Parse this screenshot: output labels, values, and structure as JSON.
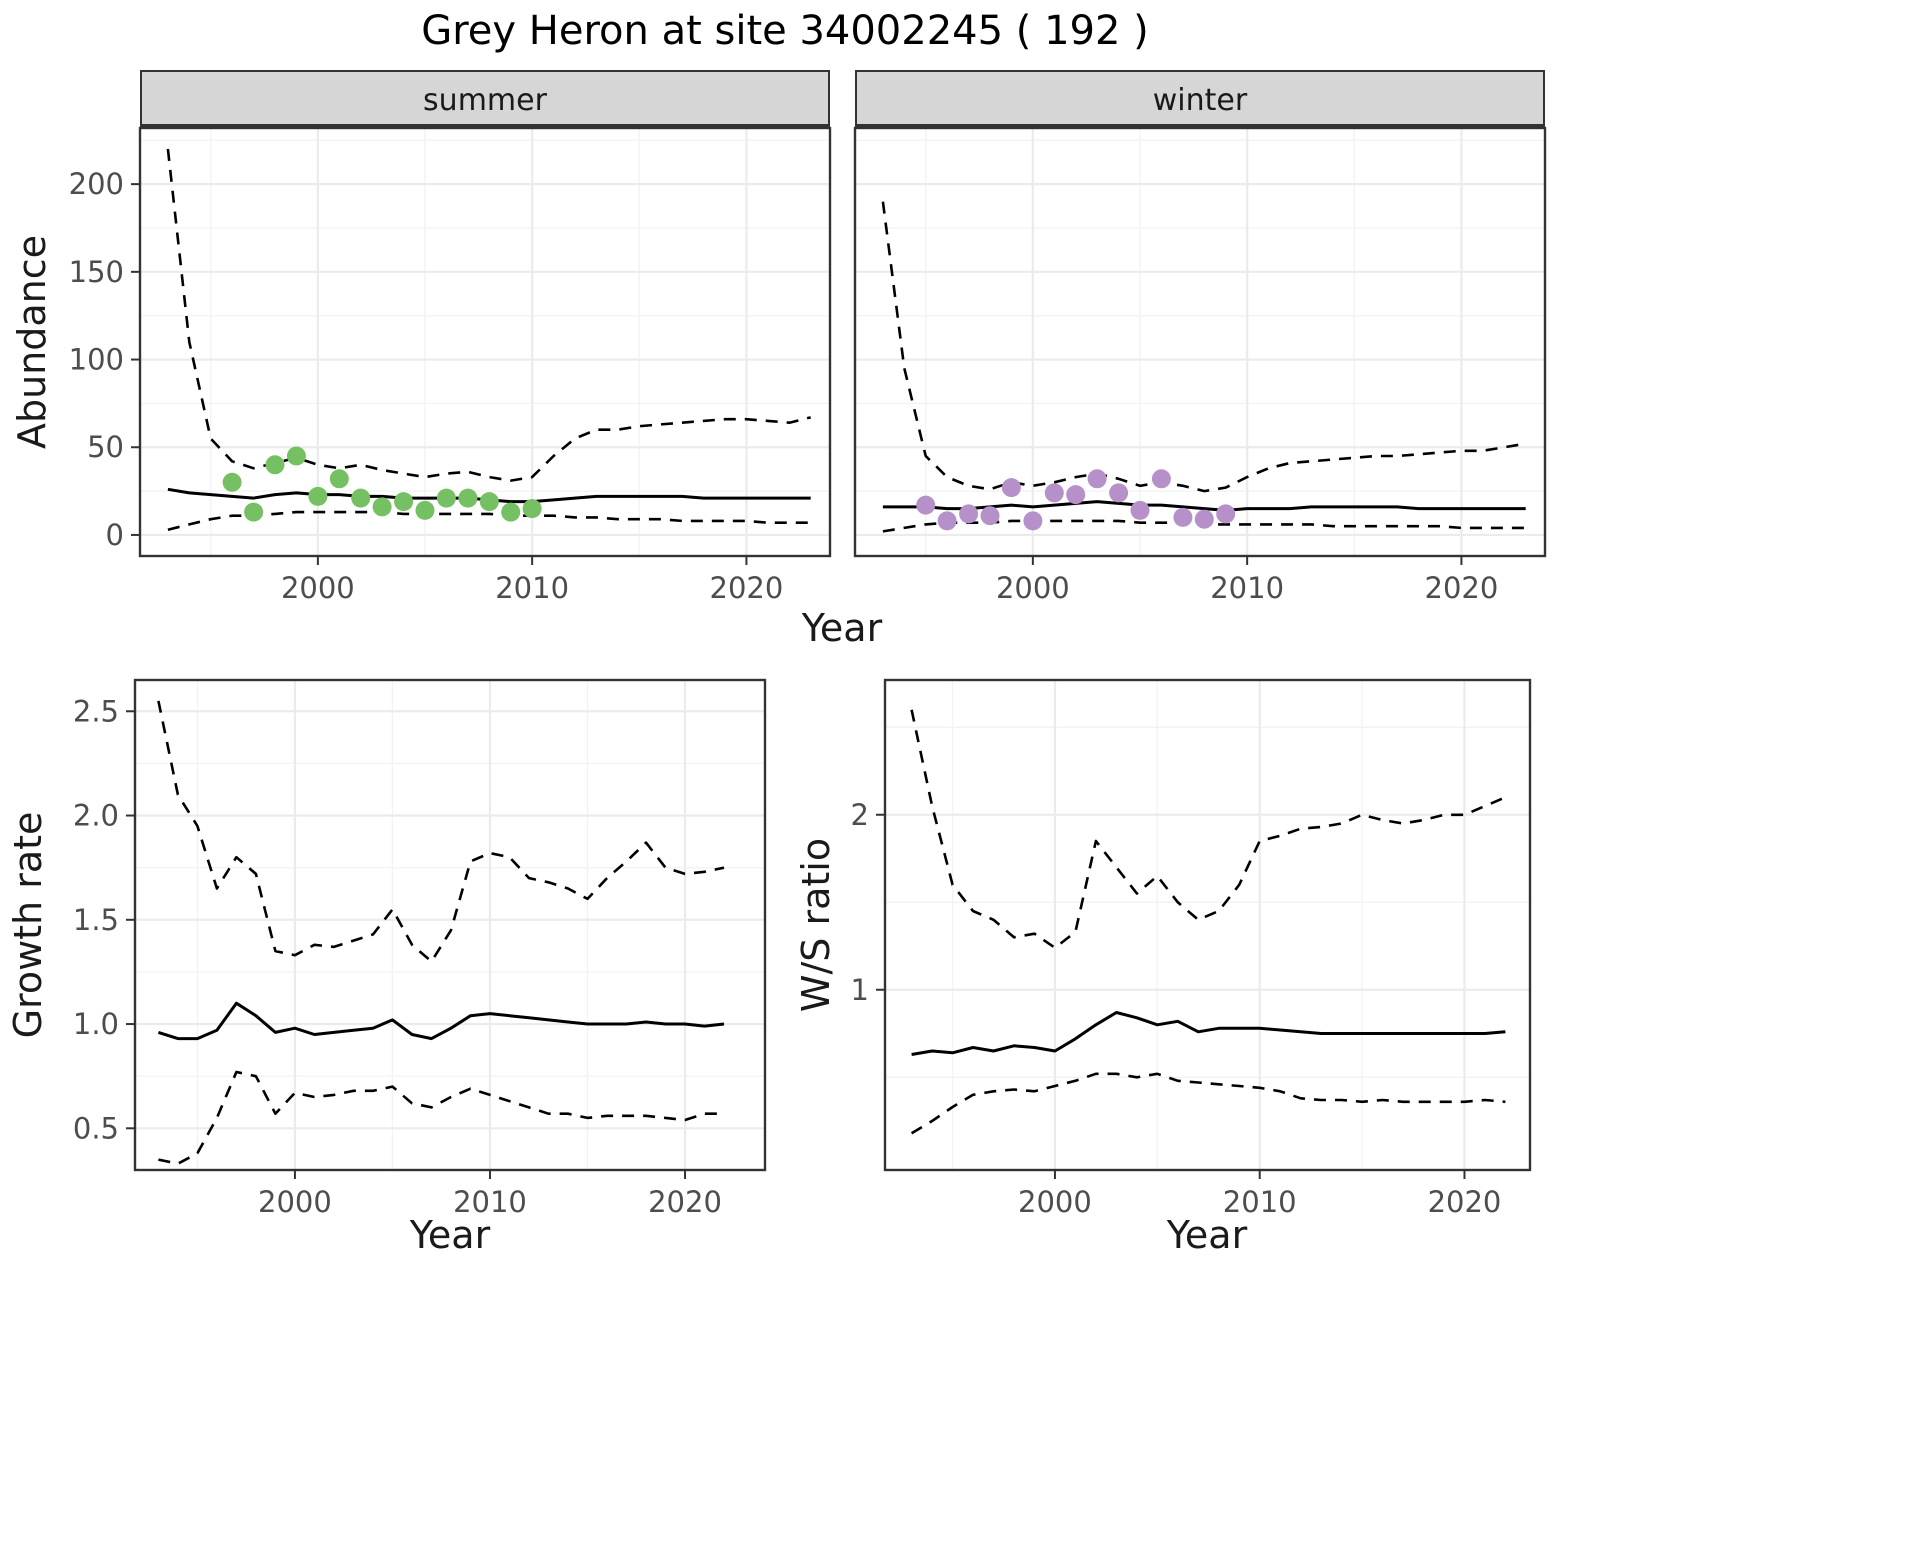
{
  "title": "Grey Heron at site 34002245 ( 192 )",
  "colors": {
    "summer_points": "#76c064",
    "winter_points": "#b690c8",
    "line": "#000000",
    "strip_bg": "#d6d6d6",
    "grid_major": "#ebebeb",
    "grid_minor": "#f3f3f3",
    "panel_border": "#333333",
    "tick_text": "#4d4d4d"
  },
  "chart_data": [
    {
      "id": "summer-abundance",
      "type": "line",
      "facet_label": "summer",
      "ylabel": "Abundance",
      "xlabel": "Year",
      "xlim": [
        1991.7,
        2023.9
      ],
      "ylim": [
        -12,
        232
      ],
      "xticks": [
        2000,
        2010,
        2020
      ],
      "xtick_labels": [
        "2000",
        "2010",
        "2020"
      ],
      "yticks": [
        0,
        50,
        100,
        150,
        200
      ],
      "ytick_labels": [
        "0",
        "50",
        "100",
        "150",
        "200"
      ],
      "x": [
        1993,
        1994,
        1995,
        1996,
        1997,
        1998,
        1999,
        2000,
        2001,
        2002,
        2003,
        2004,
        2005,
        2006,
        2007,
        2008,
        2009,
        2010,
        2011,
        2012,
        2013,
        2014,
        2015,
        2016,
        2017,
        2018,
        2019,
        2020,
        2021,
        2022,
        2023
      ],
      "series": [
        {
          "name": "estimate",
          "style": "solid",
          "values": [
            26,
            24,
            23,
            22,
            21,
            23,
            24,
            23,
            23,
            22,
            22,
            21,
            21,
            21,
            21,
            20,
            19,
            19,
            20,
            21,
            22,
            22,
            22,
            22,
            22,
            21,
            21,
            21,
            21,
            21,
            21
          ]
        },
        {
          "name": "upper-ci",
          "style": "dashed",
          "values": [
            220,
            110,
            55,
            42,
            38,
            41,
            44,
            40,
            38,
            40,
            37,
            35,
            33,
            35,
            36,
            33,
            31,
            33,
            45,
            55,
            60,
            60,
            62,
            63,
            64,
            65,
            66,
            66,
            65,
            64,
            67
          ]
        },
        {
          "name": "lower-ci",
          "style": "dashed",
          "values": [
            3,
            6,
            9,
            11,
            11,
            12,
            13,
            13,
            13,
            13,
            13,
            12,
            12,
            12,
            12,
            12,
            11,
            11,
            11,
            10,
            10,
            9,
            9,
            9,
            8,
            8,
            8,
            8,
            7,
            7,
            7
          ]
        }
      ],
      "points": {
        "name": "observed",
        "color_key": "summer_points",
        "x": [
          1996,
          1997,
          1998,
          1999,
          2000,
          2001,
          2002,
          2003,
          2004,
          2005,
          2006,
          2007,
          2008,
          2009,
          2010
        ],
        "y": [
          30,
          13,
          40,
          45,
          22,
          32,
          21,
          16,
          19,
          14,
          21,
          21,
          19,
          13,
          15
        ]
      }
    },
    {
      "id": "winter-abundance",
      "type": "line",
      "facet_label": "winter",
      "ylabel": "Abundance",
      "xlabel": "Year",
      "xlim": [
        1991.7,
        2023.9
      ],
      "ylim": [
        -12,
        232
      ],
      "xticks": [
        2000,
        2010,
        2020
      ],
      "xtick_labels": [
        "2000",
        "2010",
        "2020"
      ],
      "yticks": [
        0,
        50,
        100,
        150,
        200
      ],
      "ytick_labels": [
        "0",
        "50",
        "100",
        "150",
        "200"
      ],
      "x": [
        1993,
        1994,
        1995,
        1996,
        1997,
        1998,
        1999,
        2000,
        2001,
        2002,
        2003,
        2004,
        2005,
        2006,
        2007,
        2008,
        2009,
        2010,
        2011,
        2012,
        2013,
        2014,
        2015,
        2016,
        2017,
        2018,
        2019,
        2020,
        2021,
        2022,
        2023
      ],
      "series": [
        {
          "name": "estimate",
          "style": "solid",
          "values": [
            16,
            16,
            16,
            15,
            15,
            16,
            17,
            16,
            17,
            18,
            19,
            18,
            17,
            17,
            16,
            15,
            14,
            15,
            15,
            15,
            16,
            16,
            16,
            16,
            16,
            15,
            15,
            15,
            15,
            15,
            15
          ]
        },
        {
          "name": "upper-ci",
          "style": "dashed",
          "values": [
            190,
            95,
            45,
            33,
            28,
            26,
            30,
            28,
            30,
            33,
            35,
            32,
            28,
            30,
            28,
            25,
            27,
            33,
            38,
            41,
            42,
            43,
            44,
            45,
            45,
            46,
            47,
            48,
            48,
            50,
            52
          ]
        },
        {
          "name": "lower-ci",
          "style": "dashed",
          "values": [
            2,
            4,
            6,
            7,
            7,
            7,
            8,
            8,
            8,
            8,
            8,
            8,
            7,
            7,
            7,
            6,
            6,
            6,
            6,
            6,
            6,
            5,
            5,
            5,
            5,
            5,
            5,
            4,
            4,
            4,
            4
          ]
        }
      ],
      "points": {
        "name": "observed",
        "color_key": "winter_points",
        "x": [
          1995,
          1996,
          1997,
          1998,
          1999,
          2000,
          2001,
          2002,
          2003,
          2004,
          2005,
          2006,
          2007,
          2008,
          2009
        ],
        "y": [
          17,
          8,
          12,
          11,
          27,
          8,
          24,
          23,
          32,
          24,
          14,
          32,
          10,
          9,
          12
        ]
      }
    },
    {
      "id": "growth-rate",
      "type": "line",
      "facet_label": "",
      "ylabel": "Growth rate",
      "xlabel": "Year",
      "xlim": [
        1991.8,
        2024.1
      ],
      "ylim": [
        0.3,
        2.65
      ],
      "xticks": [
        2000,
        2010,
        2020
      ],
      "xtick_labels": [
        "2000",
        "2010",
        "2020"
      ],
      "yticks": [
        0.5,
        1.0,
        1.5,
        2.0,
        2.5
      ],
      "ytick_labels": [
        "0.5",
        "1.0",
        "1.5",
        "2.0",
        "2.5"
      ],
      "x": [
        1993,
        1994,
        1995,
        1996,
        1997,
        1998,
        1999,
        2000,
        2001,
        2002,
        2003,
        2004,
        2005,
        2006,
        2007,
        2008,
        2009,
        2010,
        2011,
        2012,
        2013,
        2014,
        2015,
        2016,
        2017,
        2018,
        2019,
        2020,
        2021,
        2022
      ],
      "series": [
        {
          "name": "estimate",
          "style": "solid",
          "values": [
            0.96,
            0.93,
            0.93,
            0.97,
            1.1,
            1.04,
            0.96,
            0.98,
            0.95,
            0.96,
            0.97,
            0.98,
            1.02,
            0.95,
            0.93,
            0.98,
            1.04,
            1.05,
            1.04,
            1.03,
            1.02,
            1.01,
            1.0,
            1.0,
            1.0,
            1.01,
            1.0,
            1.0,
            0.99,
            1.0
          ]
        },
        {
          "name": "upper-ci",
          "style": "dashed",
          "values": [
            2.55,
            2.1,
            1.95,
            1.65,
            1.8,
            1.72,
            1.35,
            1.33,
            1.38,
            1.37,
            1.4,
            1.43,
            1.55,
            1.38,
            1.3,
            1.45,
            1.78,
            1.82,
            1.8,
            1.7,
            1.68,
            1.65,
            1.6,
            1.7,
            1.78,
            1.87,
            1.75,
            1.72,
            1.73,
            1.75
          ]
        },
        {
          "name": "lower-ci",
          "style": "dashed",
          "values": [
            0.35,
            0.33,
            0.38,
            0.55,
            0.77,
            0.75,
            0.57,
            0.67,
            0.65,
            0.66,
            0.68,
            0.68,
            0.7,
            0.62,
            0.6,
            0.65,
            0.69,
            0.66,
            0.63,
            0.6,
            0.57,
            0.57,
            0.55,
            0.56,
            0.56,
            0.56,
            0.55,
            0.54,
            0.57,
            0.57
          ]
        }
      ],
      "points": null
    },
    {
      "id": "ws-ratio",
      "type": "line",
      "facet_label": "",
      "ylabel": "W/S ratio",
      "xlabel": "Year",
      "xlim": [
        1991.7,
        2023.2
      ],
      "ylim": [
        -0.03,
        2.77
      ],
      "xticks": [
        2000,
        2010,
        2020
      ],
      "xtick_labels": [
        "2000",
        "2010",
        "2020"
      ],
      "yticks": [
        1,
        2
      ],
      "ytick_labels": [
        "1",
        "2"
      ],
      "x": [
        1993,
        1994,
        1995,
        1996,
        1997,
        1998,
        1999,
        2000,
        2001,
        2002,
        2003,
        2004,
        2005,
        2006,
        2007,
        2008,
        2009,
        2010,
        2011,
        2012,
        2013,
        2014,
        2015,
        2016,
        2017,
        2018,
        2019,
        2020,
        2021,
        2022
      ],
      "series": [
        {
          "name": "estimate",
          "style": "solid",
          "values": [
            0.63,
            0.65,
            0.64,
            0.67,
            0.65,
            0.68,
            0.67,
            0.65,
            0.72,
            0.8,
            0.87,
            0.84,
            0.8,
            0.82,
            0.76,
            0.78,
            0.78,
            0.78,
            0.77,
            0.76,
            0.75,
            0.75,
            0.75,
            0.75,
            0.75,
            0.75,
            0.75,
            0.75,
            0.75,
            0.76
          ]
        },
        {
          "name": "upper-ci",
          "style": "dashed",
          "values": [
            2.6,
            2.05,
            1.6,
            1.45,
            1.4,
            1.3,
            1.32,
            1.24,
            1.33,
            1.85,
            1.7,
            1.55,
            1.65,
            1.5,
            1.4,
            1.45,
            1.6,
            1.85,
            1.88,
            1.92,
            1.93,
            1.95,
            2.0,
            1.97,
            1.95,
            1.97,
            2.0,
            2.0,
            2.05,
            2.1
          ]
        },
        {
          "name": "lower-ci",
          "style": "dashed",
          "values": [
            0.18,
            0.25,
            0.33,
            0.4,
            0.42,
            0.43,
            0.42,
            0.45,
            0.48,
            0.52,
            0.52,
            0.5,
            0.52,
            0.48,
            0.47,
            0.46,
            0.45,
            0.44,
            0.42,
            0.38,
            0.37,
            0.37,
            0.36,
            0.37,
            0.36,
            0.36,
            0.36,
            0.36,
            0.37,
            0.36
          ]
        }
      ],
      "points": null
    }
  ]
}
